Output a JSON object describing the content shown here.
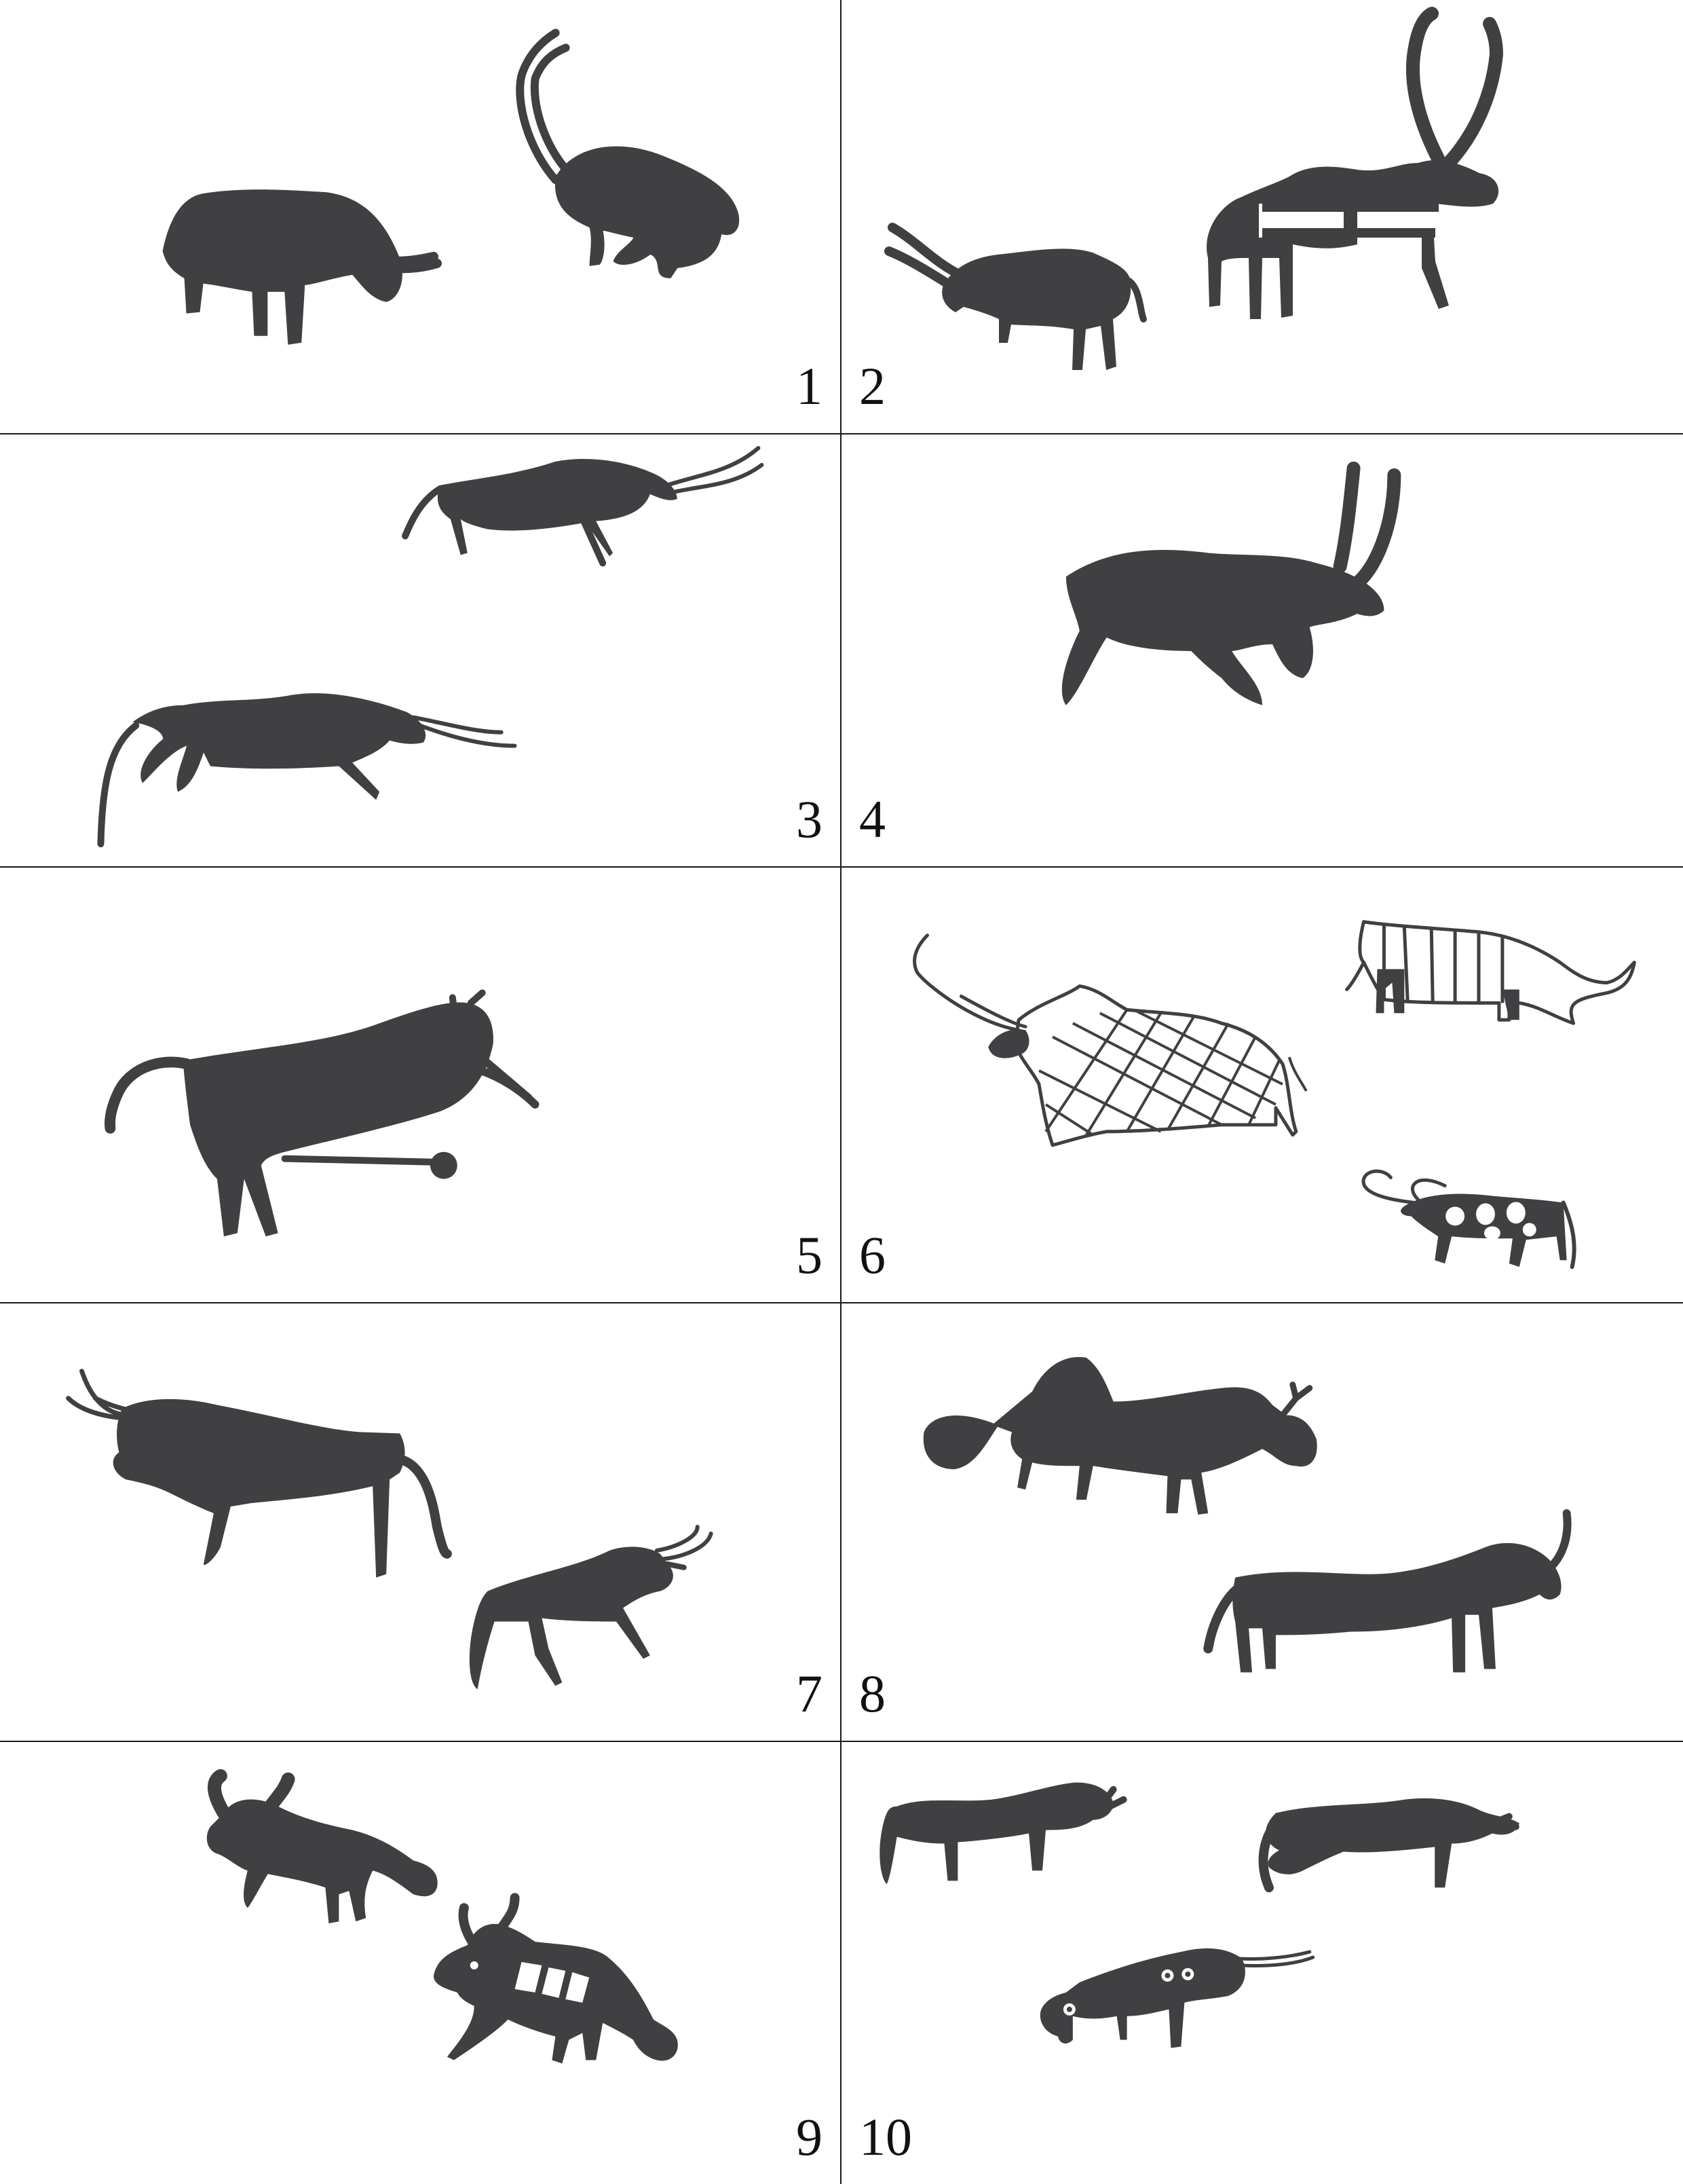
{
  "panels": [
    {
      "label": "1"
    },
    {
      "label": "2"
    },
    {
      "label": "3"
    },
    {
      "label": "4"
    },
    {
      "label": "5"
    },
    {
      "label": "6"
    },
    {
      "label": "7"
    },
    {
      "label": "8"
    },
    {
      "label": "9"
    },
    {
      "label": "10"
    }
  ],
  "colors": {
    "figure": "#404042",
    "grid_line": "#1a1a1a",
    "background": "#ffffff"
  }
}
